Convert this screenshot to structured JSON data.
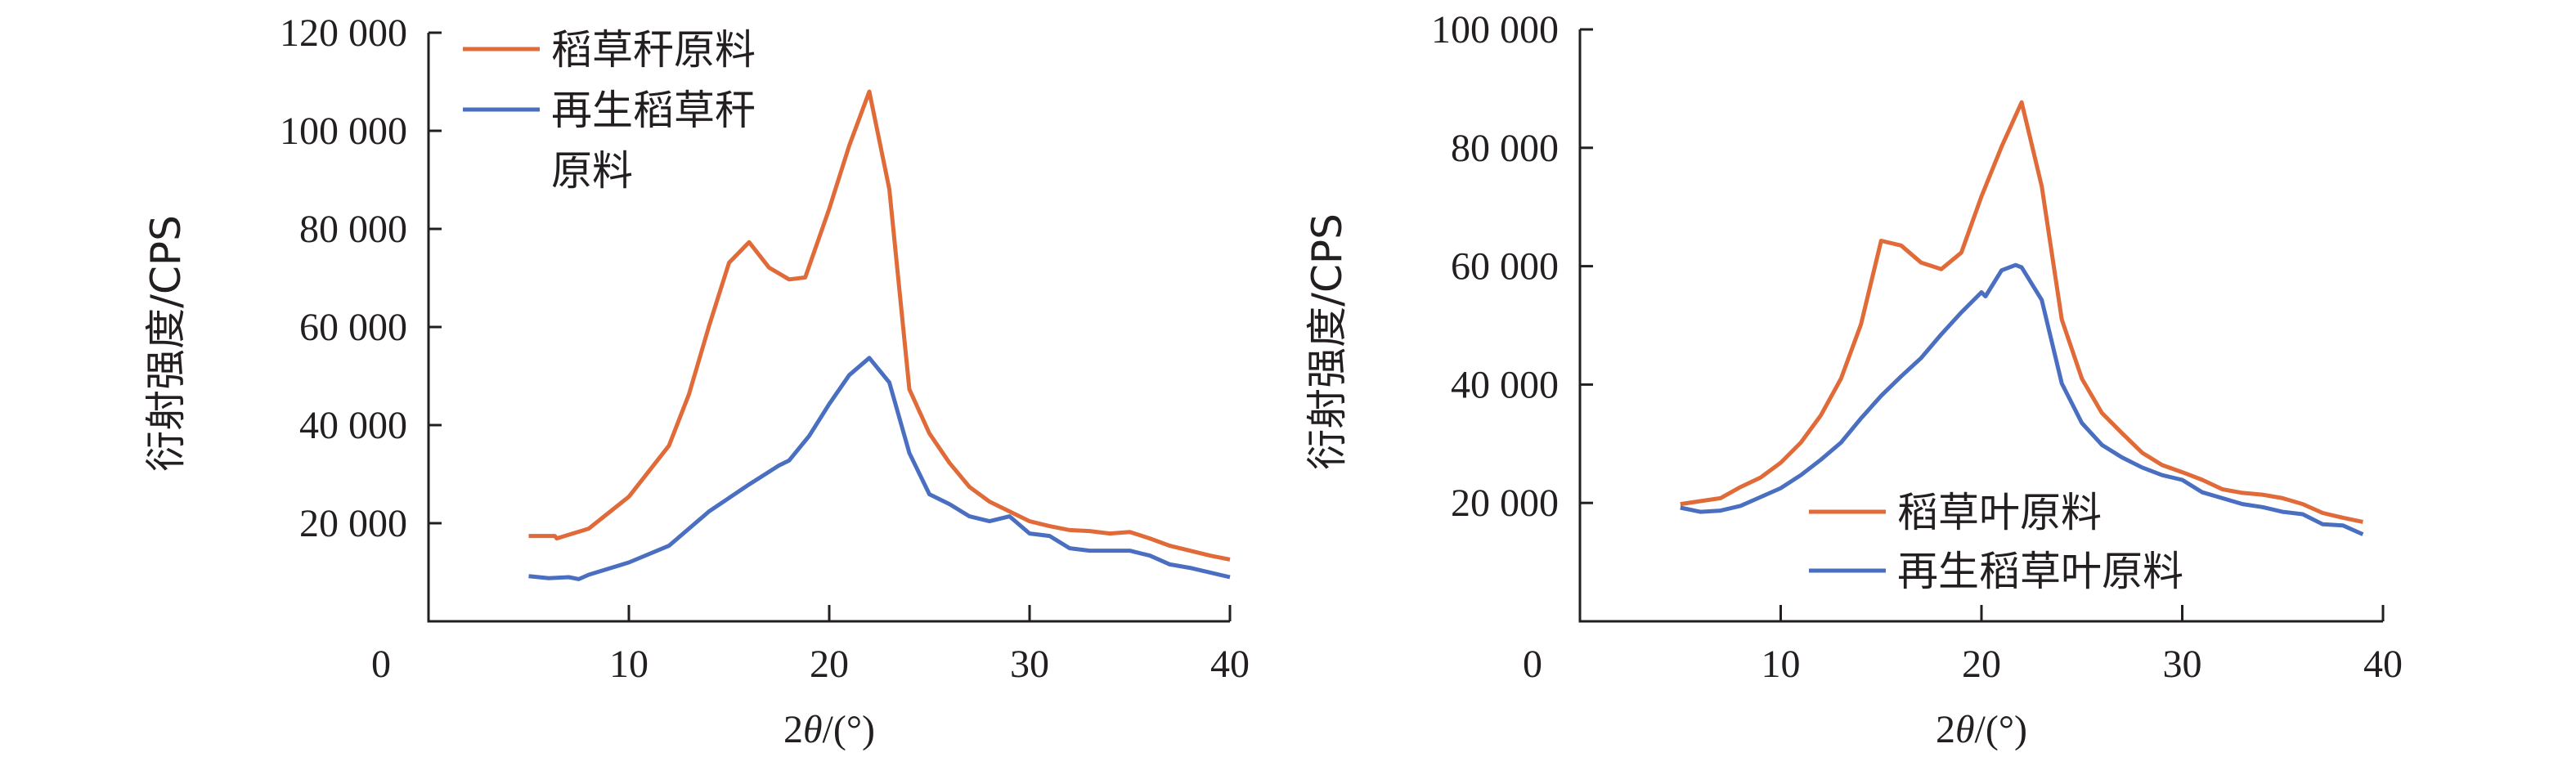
{
  "chart_data": [
    {
      "type": "line",
      "title": "",
      "xlabel": "2θ/(°)",
      "xlabel_parts": [
        "2",
        "θ",
        "/(°)"
      ],
      "ylabel": "衍射强度/CPS",
      "xlim": [
        0,
        40
      ],
      "ylim": [
        0,
        120000
      ],
      "xticks": [
        0,
        10,
        20,
        30,
        40
      ],
      "xtick_labels": [
        "0",
        "10",
        "20",
        "30",
        "40"
      ],
      "yticks": [
        20000,
        40000,
        60000,
        80000,
        100000,
        120000
      ],
      "ytick_labels": [
        "20 000",
        "40 000",
        "60 000",
        "80 000",
        "100 000",
        "120 000"
      ],
      "grid": false,
      "legend_position": "top-left",
      "series": [
        {
          "name": "稻草秆原料",
          "legend_lines": [
            "稻草秆原料"
          ],
          "color": "#e06a38",
          "x": [
            5,
            6.3,
            6.4,
            8,
            10,
            12,
            13,
            14,
            15,
            16,
            17,
            18,
            18.8,
            20,
            21,
            22,
            23,
            24,
            25,
            26,
            27,
            28,
            29,
            30,
            31,
            32,
            33,
            34,
            35,
            36,
            37,
            38,
            39,
            40
          ],
          "y": [
            17400,
            17400,
            16900,
            18900,
            25400,
            35800,
            46300,
            60200,
            73100,
            77300,
            72100,
            69700,
            70100,
            84100,
            97000,
            108000,
            88100,
            47300,
            38300,
            32300,
            27400,
            24400,
            22400,
            20400,
            19400,
            18600,
            18400,
            17900,
            18200,
            16900,
            15400,
            14400,
            13400,
            12600
          ]
        },
        {
          "name": "再生稻草秆原料",
          "legend_lines": [
            "再生稻草秆",
            "原料"
          ],
          "color": "#4a6fc1",
          "x": [
            5,
            6,
            7,
            7.5,
            8,
            10,
            12,
            14,
            16,
            17.5,
            18,
            19,
            20,
            21,
            22,
            23,
            24,
            25,
            26,
            27,
            28,
            29,
            30,
            31,
            32,
            33,
            35,
            36,
            37,
            38,
            40
          ],
          "y": [
            9200,
            8800,
            9000,
            8600,
            9500,
            12000,
            15400,
            22400,
            27900,
            31800,
            32800,
            37800,
            44300,
            50200,
            53700,
            48700,
            34300,
            25900,
            23900,
            21400,
            20400,
            21400,
            17900,
            17400,
            14900,
            14400,
            14400,
            13400,
            11600,
            10900,
            9000
          ]
        }
      ]
    },
    {
      "type": "line",
      "title": "",
      "xlabel": "2θ/(°)",
      "xlabel_parts": [
        "2",
        "θ",
        "/(°)"
      ],
      "ylabel": "衍射强度/CPS",
      "xlim": [
        0,
        40
      ],
      "ylim": [
        0,
        100000
      ],
      "xticks": [
        0,
        10,
        20,
        30,
        40
      ],
      "xtick_labels": [
        "0",
        "10",
        "20",
        "30",
        "40"
      ],
      "yticks": [
        20000,
        40000,
        60000,
        80000,
        100000
      ],
      "ytick_labels": [
        "20 000",
        "40 000",
        "60 000",
        "80 000",
        "100 000"
      ],
      "grid": false,
      "legend_position": "bottom-center",
      "series": [
        {
          "name": "稻草叶原料",
          "legend_lines": [
            "稻草叶原料"
          ],
          "color": "#e06a38",
          "x": [
            5,
            7,
            8,
            9,
            10,
            11,
            12,
            13,
            14,
            15,
            16,
            17,
            18,
            19,
            20,
            21,
            22,
            23,
            24,
            25,
            26,
            27,
            28,
            29,
            30,
            31,
            32,
            33,
            34,
            35,
            36,
            37,
            38,
            39
          ],
          "y": [
            19800,
            20800,
            22700,
            24300,
            26800,
            30200,
            34800,
            41000,
            50200,
            64300,
            63500,
            60600,
            59500,
            62300,
            71800,
            80200,
            87700,
            73500,
            51000,
            41000,
            35200,
            31800,
            28500,
            26400,
            25200,
            23900,
            22300,
            21700,
            21400,
            20800,
            19800,
            18300,
            17500,
            16800
          ]
        },
        {
          "name": "再生稻草叶原料",
          "legend_lines": [
            "再生稻草叶原料"
          ],
          "color": "#4a6fc1",
          "x": [
            5,
            6,
            7,
            8,
            9,
            10,
            11,
            12,
            13,
            14,
            15,
            16,
            17,
            18,
            19,
            20,
            20.2,
            21,
            21.7,
            22,
            23,
            24,
            25,
            26,
            27,
            28,
            29,
            30,
            31,
            32,
            33,
            34,
            35,
            36,
            37,
            38,
            39
          ],
          "y": [
            19200,
            18500,
            18700,
            19500,
            21000,
            22500,
            24700,
            27300,
            30200,
            34300,
            38100,
            41400,
            44500,
            48500,
            52200,
            55600,
            54900,
            59300,
            60200,
            59800,
            54300,
            40200,
            33500,
            29800,
            27700,
            26000,
            24700,
            23900,
            21800,
            20800,
            19800,
            19300,
            18500,
            18100,
            16400,
            16200,
            14700
          ]
        }
      ]
    }
  ]
}
